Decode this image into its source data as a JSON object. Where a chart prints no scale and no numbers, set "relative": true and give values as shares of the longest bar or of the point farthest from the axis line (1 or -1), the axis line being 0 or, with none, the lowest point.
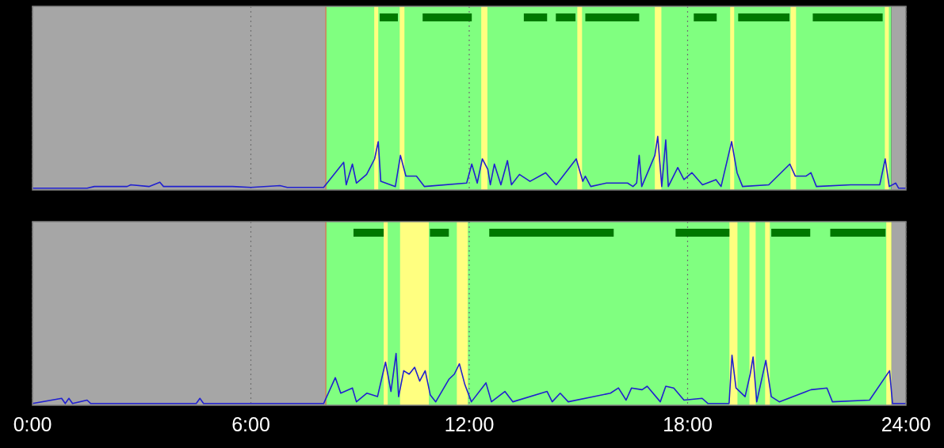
{
  "chart_data": [
    {
      "type": "line",
      "relative": true,
      "xlim": [
        0,
        24
      ],
      "xticks": [
        {
          "value": 0,
          "label": null
        },
        {
          "value": 6,
          "label": null
        },
        {
          "value": 12,
          "label": null
        },
        {
          "value": 18,
          "label": null
        },
        {
          "value": 24,
          "label": null
        }
      ],
      "grid": "x",
      "tick_labels": false,
      "bands": [
        {
          "axis": "x",
          "from": 0,
          "to": 8.06,
          "color": "#a6a6a6"
        },
        {
          "axis": "x",
          "from": 8.06,
          "to": 23.6,
          "color": "#80ff80"
        },
        {
          "axis": "x",
          "from": 23.6,
          "to": 24,
          "color": "#a6a6a6"
        },
        {
          "axis": "x",
          "from": 9.39,
          "to": 9.5,
          "color": "#ffff80"
        },
        {
          "axis": "x",
          "from": 10.09,
          "to": 10.22,
          "color": "#ffff80"
        },
        {
          "axis": "x",
          "from": 12.33,
          "to": 12.5,
          "color": "#ffff80"
        },
        {
          "axis": "x",
          "from": 14.97,
          "to": 15.1,
          "color": "#ffff80"
        },
        {
          "axis": "x",
          "from": 17.1,
          "to": 17.28,
          "color": "#ffff80"
        },
        {
          "axis": "x",
          "from": 19.17,
          "to": 19.28,
          "color": "#ffff80"
        },
        {
          "axis": "x",
          "from": 20.83,
          "to": 20.98,
          "color": "#ffff80"
        },
        {
          "axis": "x",
          "from": 23.42,
          "to": 23.53,
          "color": "#ffff80"
        }
      ],
      "ref_lines": [
        {
          "axis": "x",
          "value": 8.06,
          "color": "#d0805a"
        }
      ],
      "series": [
        {
          "color": "#2020d0",
          "x": [
            0,
            1.5,
            1.7,
            2.6,
            2.7,
            3.2,
            3.5,
            3.6,
            5.5,
            6,
            6.8,
            7,
            8,
            8.55,
            8.62,
            8.79,
            8.9,
            9.18,
            9.4,
            9.5,
            9.57,
            9.97,
            10.11,
            10.26,
            10.55,
            10.77,
            11.93,
            12.07,
            12.22,
            12.36,
            12.51,
            12.58,
            12.69,
            12.87,
            13.05,
            13.16,
            13.38,
            13.67,
            14.1,
            14.39,
            14.94,
            15.12,
            15.19,
            15.34,
            15.77,
            16.35,
            16.5,
            16.6,
            16.67,
            16.74,
            17.1,
            17.18,
            17.29,
            17.4,
            17.47,
            17.73,
            17.9,
            18.12,
            18.41,
            18.78,
            18.92,
            19.21,
            19.36,
            19.51,
            20.23,
            20.81,
            20.96,
            21.25,
            21.39,
            21.54,
            22.48,
            23.28,
            23.43,
            23.54,
            23.72,
            23.8,
            24
          ],
          "values": [
            0.01,
            0.01,
            0.02,
            0.02,
            0.03,
            0.02,
            0.045,
            0.02,
            0.02,
            0.015,
            0.025,
            0.015,
            0.015,
            0.16,
            0.03,
            0.15,
            0.04,
            0.09,
            0.18,
            0.28,
            0.05,
            0.02,
            0.2,
            0.08,
            0.08,
            0.02,
            0.04,
            0.15,
            0.04,
            0.18,
            0.12,
            0.03,
            0.15,
            0.03,
            0.17,
            0.03,
            0.09,
            0.05,
            0.1,
            0.03,
            0.18,
            0.05,
            0.08,
            0.02,
            0.04,
            0.04,
            0.02,
            0.04,
            0.2,
            0.02,
            0.2,
            0.31,
            0.02,
            0.29,
            0.02,
            0.13,
            0.06,
            0.1,
            0.03,
            0.06,
            0.02,
            0.28,
            0.1,
            0.02,
            0.03,
            0.15,
            0.08,
            0.08,
            0.1,
            0.02,
            0.03,
            0.03,
            0.18,
            0.02,
            0.04,
            0.01,
            0.01
          ]
        },
        {
          "color": "#007800",
          "x": [
            9.54,
            10.04,
            10.38,
            10.72,
            12.07,
            12.8,
            13.5,
            14.14,
            14.26,
            14.38,
            14.92,
            15.05,
            15.19,
            16.67,
            17.4,
            18.17,
            18.8,
            19.1,
            19.39,
            20.8,
            21.1,
            21.44,
            23.36
          ],
          "values": [
            1,
            1,
            null,
            1,
            1,
            null,
            1,
            1,
            null,
            1,
            1,
            null,
            1,
            1,
            null,
            1,
            1,
            null,
            1,
            1,
            null,
            1,
            1
          ]
        }
      ]
    },
    {
      "type": "line",
      "relative": true,
      "xlim": [
        0,
        24
      ],
      "xticks": [
        {
          "value": 0,
          "label": "0:00"
        },
        {
          "value": 6,
          "label": "6:00"
        },
        {
          "value": 12,
          "label": "12:00"
        },
        {
          "value": 18,
          "label": "18:00"
        },
        {
          "value": 24,
          "label": "24:00"
        }
      ],
      "grid": "x",
      "tick_labels": "x",
      "bands": [
        {
          "axis": "x",
          "from": 0,
          "to": 8.06,
          "color": "#a6a6a6"
        },
        {
          "axis": "x",
          "from": 8.06,
          "to": 23.6,
          "color": "#80ff80"
        },
        {
          "axis": "x",
          "from": 23.6,
          "to": 24,
          "color": "#a6a6a6"
        },
        {
          "axis": "x",
          "from": 9.65,
          "to": 9.76,
          "color": "#ffff80"
        },
        {
          "axis": "x",
          "from": 10.1,
          "to": 10.89,
          "color": "#ffff80"
        },
        {
          "axis": "x",
          "from": 11.66,
          "to": 11.96,
          "color": "#ffff80"
        },
        {
          "axis": "x",
          "from": 19.15,
          "to": 19.37,
          "color": "#ffff80"
        },
        {
          "axis": "x",
          "from": 19.7,
          "to": 19.87,
          "color": "#ffff80"
        },
        {
          "axis": "x",
          "from": 20.13,
          "to": 20.26,
          "color": "#ffff80"
        },
        {
          "axis": "x",
          "from": 23.46,
          "to": 23.6,
          "color": "#ffff80"
        }
      ],
      "ref_lines": [
        {
          "axis": "x",
          "value": 8.06,
          "color": "#d0805a"
        }
      ],
      "series": [
        {
          "color": "#2020d0",
          "x": [
            0,
            0.8,
            0.9,
            1,
            1.1,
            1.5,
            1.6,
            4.5,
            4.6,
            4.7,
            6,
            8,
            8.32,
            8.47,
            8.79,
            8.9,
            9.19,
            9.48,
            9.7,
            9.85,
            9.99,
            10.06,
            10.2,
            10.35,
            10.5,
            10.64,
            10.79,
            10.93,
            11.08,
            11.44,
            11.59,
            11.73,
            11.88,
            12.06,
            12.46,
            12.61,
            12.98,
            13.2,
            14.14,
            14.28,
            14.5,
            14.72,
            15.88,
            16.1,
            16.31,
            16.46,
            16.75,
            16.89,
            17.25,
            17.4,
            17.62,
            17.9,
            18.4,
            18.56,
            19.14,
            19.22,
            19.33,
            19.58,
            19.72,
            19.8,
            19.9,
            20.15,
            20.3,
            20.52,
            21.39,
            21.83,
            21.98,
            23,
            23.55,
            23.63,
            24
          ],
          "values": [
            0.01,
            0.04,
            0.01,
            0.04,
            0.01,
            0.03,
            0.01,
            0.01,
            0.04,
            0.01,
            0.01,
            0.01,
            0.16,
            0.07,
            0.1,
            0.02,
            0.07,
            0.05,
            0.25,
            0.08,
            0.3,
            0.05,
            0.2,
            0.18,
            0.22,
            0.14,
            0.2,
            0.06,
            0.02,
            0.15,
            0.18,
            0.24,
            0.12,
            0.02,
            0.13,
            0.02,
            0.08,
            0.02,
            0.08,
            0.02,
            0.07,
            0.02,
            0.07,
            0.1,
            0.03,
            0.1,
            0.09,
            0.11,
            0.02,
            0.11,
            0.1,
            0.03,
            0.04,
            0.01,
            0.01,
            0.29,
            0.1,
            0.05,
            0.18,
            0.28,
            0.02,
            0.26,
            0.05,
            0.02,
            0.09,
            0.1,
            0.02,
            0.03,
            0.2,
            0.01,
            0.01
          ]
        },
        {
          "color": "#007800",
          "x": [
            8.82,
            9.65,
            10.3,
            10.92,
            11.44,
            12,
            12.55,
            15.97,
            16.8,
            17.67,
            19.15,
            19.7,
            20.3,
            21.37,
            21.6,
            21.92,
            23.44
          ],
          "values": [
            1,
            1,
            null,
            1,
            1,
            null,
            1,
            1,
            null,
            1,
            1,
            null,
            1,
            1,
            null,
            1,
            1
          ]
        }
      ]
    }
  ]
}
